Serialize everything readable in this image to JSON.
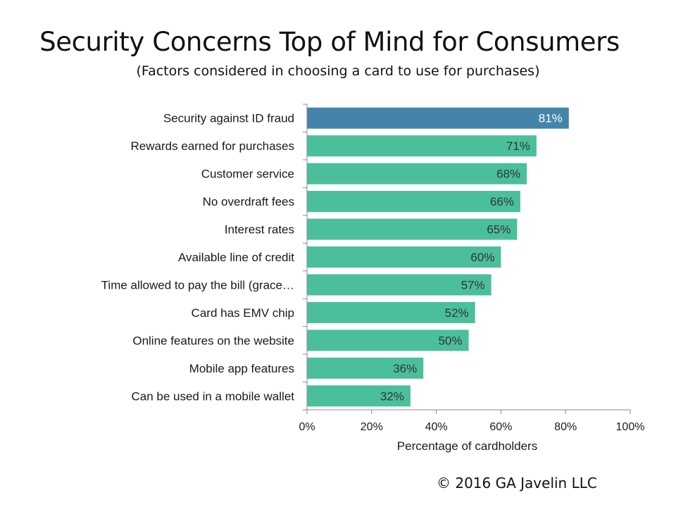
{
  "chart_data": {
    "type": "bar",
    "orientation": "horizontal",
    "title": "Security Concerns Top of Mind for Consumers",
    "subtitle": "(Factors considered in choosing a card to use for purchases)",
    "xlabel": "Percentage of cardholders",
    "ylabel": "",
    "xlim": [
      0,
      100
    ],
    "ticks": [
      "0%",
      "20%",
      "40%",
      "60%",
      "80%",
      "100%"
    ],
    "tick_values": [
      0,
      20,
      40,
      60,
      80,
      100
    ],
    "categories": [
      "Security against ID fraud",
      "Rewards earned for purchases",
      "Customer service",
      "No overdraft fees",
      "Interest rates",
      "Available line of credit",
      "Time allowed to pay the bill (grace…",
      "Card has EMV chip",
      "Online features on the website",
      "Mobile app features",
      "Can be used in a mobile wallet"
    ],
    "values": [
      81,
      71,
      68,
      66,
      65,
      60,
      57,
      52,
      50,
      36,
      32
    ],
    "value_labels": [
      "81%",
      "71%",
      "68%",
      "66%",
      "65%",
      "60%",
      "57%",
      "52%",
      "50%",
      "36%",
      "32%"
    ],
    "highlight_index": 0,
    "colors": {
      "highlight": "#4484ab",
      "bar": "#4bbf9c",
      "axis": "#8c8c8c"
    },
    "grid": false,
    "legend": "none"
  },
  "footer": {
    "copyright": "© 2016  GA Javelin LLC"
  }
}
